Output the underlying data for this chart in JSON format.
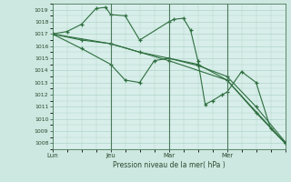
{
  "background_color": "#cde8e0",
  "plot_bg_color": "#d8eeea",
  "line_color": "#2d6e3e",
  "grid_color": "#b0d4c8",
  "vline_color": "#4a7a5a",
  "xlabel": "Pression niveau de la mer( hPa )",
  "ylim": [
    1007.5,
    1019.5
  ],
  "yticks": [
    1008,
    1009,
    1010,
    1011,
    1012,
    1013,
    1014,
    1015,
    1016,
    1017,
    1018,
    1019
  ],
  "xlim": [
    0,
    192
  ],
  "xtick_positions": [
    0,
    48,
    96,
    144,
    192
  ],
  "xtick_labels": [
    "Lun",
    "Jeu",
    "Mar",
    "Mer",
    ""
  ],
  "vlines": [
    48,
    96,
    144
  ],
  "series": [
    {
      "x": [
        0,
        12,
        24,
        36,
        44,
        48,
        60,
        72,
        96,
        100,
        108,
        114,
        120,
        126,
        132,
        140,
        144,
        156,
        168,
        180,
        192
      ],
      "y": [
        1017.0,
        1017.2,
        1017.8,
        1019.1,
        1019.2,
        1018.6,
        1018.5,
        1016.5,
        1018.0,
        1018.2,
        1018.3,
        1017.3,
        1014.8,
        1011.2,
        1011.5,
        1012.0,
        1012.2,
        1013.9,
        1013.0,
        1009.2,
        1008.0
      ]
    },
    {
      "x": [
        0,
        48,
        96,
        144,
        192
      ],
      "y": [
        1017.0,
        1016.2,
        1014.8,
        1013.2,
        1008.0
      ]
    },
    {
      "x": [
        0,
        24,
        48,
        72,
        96,
        120,
        144,
        168,
        192
      ],
      "y": [
        1017.0,
        1016.5,
        1016.2,
        1015.5,
        1015.0,
        1014.4,
        1013.5,
        1011.0,
        1008.1
      ]
    },
    {
      "x": [
        0,
        24,
        48,
        60,
        72,
        84,
        96,
        120,
        144,
        168,
        192
      ],
      "y": [
        1017.0,
        1015.8,
        1014.5,
        1013.2,
        1013.0,
        1014.8,
        1015.0,
        1014.5,
        1013.2,
        1010.5,
        1008.0
      ]
    }
  ]
}
